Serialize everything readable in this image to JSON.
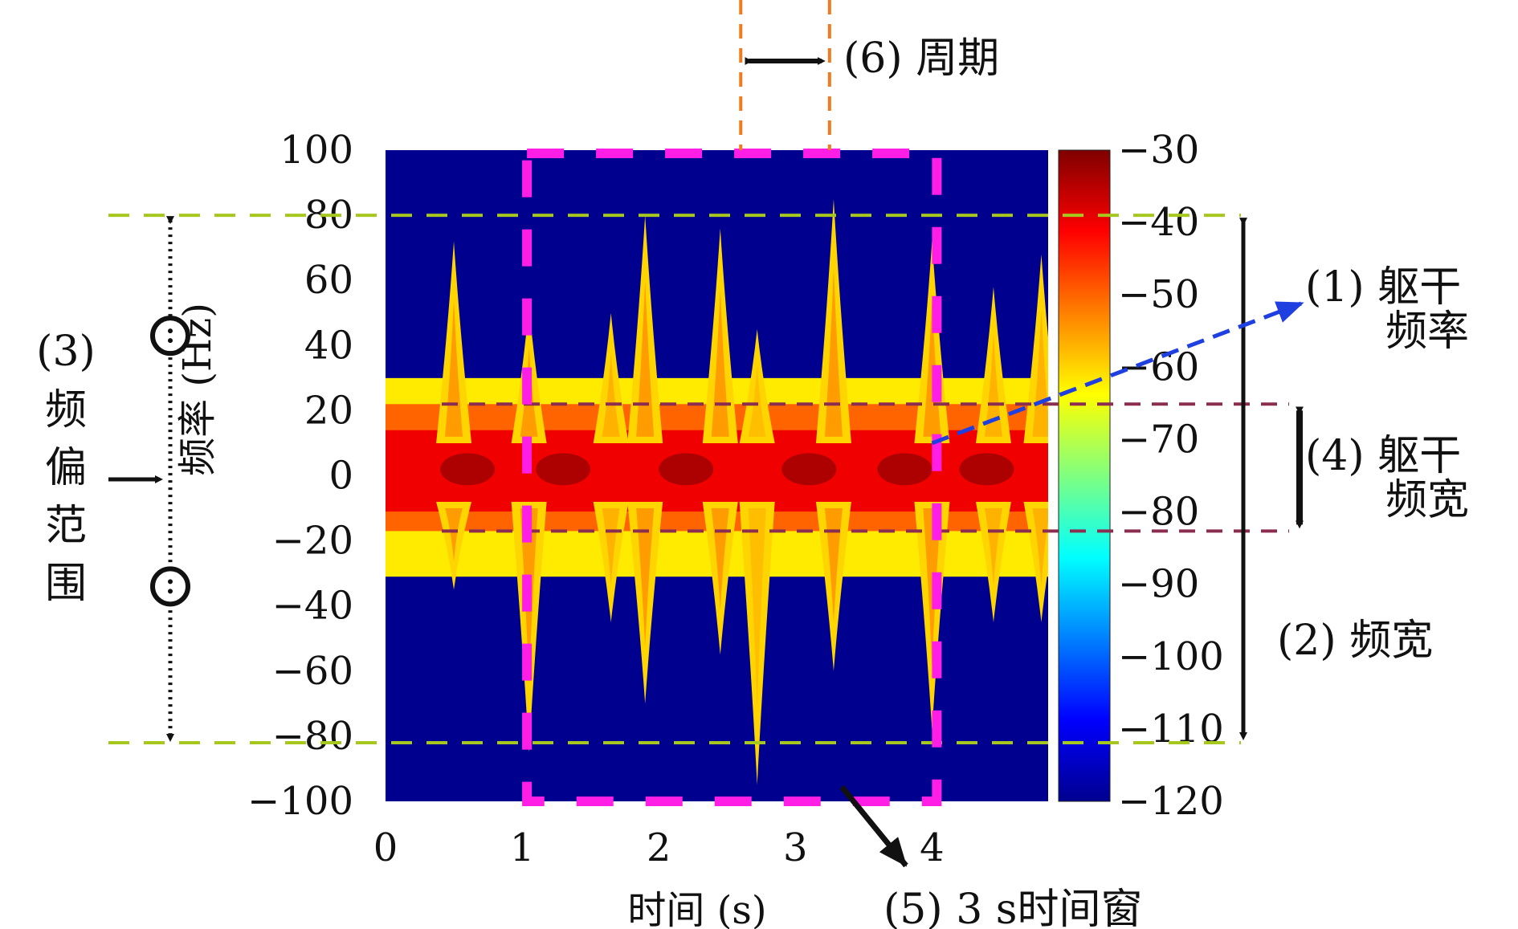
{
  "chart_data": {
    "type": "heatmap",
    "title": "",
    "xlabel": "时间 (s)",
    "ylabel": "频率 (Hz)",
    "xlim": [
      0,
      4.85
    ],
    "ylim": [
      -100,
      100
    ],
    "x_ticks": [
      "0",
      "1",
      "2",
      "3",
      "4"
    ],
    "y_ticks": [
      "100",
      "80",
      "60",
      "40",
      "20",
      "0",
      "−20",
      "−40",
      "−60",
      "−80",
      "−100"
    ],
    "colorbar": {
      "label": "",
      "range": [
        -120,
        -30
      ],
      "ticks": [
        "−30",
        "−40",
        "−50",
        "−60",
        "−70",
        "−80",
        "−90",
        "−100",
        "−110",
        "−120"
      ],
      "colormap": "jet",
      "colors": [
        "#00008f",
        "#0000ff",
        "#0080ff",
        "#00ffff",
        "#80ff80",
        "#ffff00",
        "#ff8000",
        "#ff0000",
        "#800000"
      ]
    },
    "torso_band_db": -40,
    "background_db": -120,
    "limb_bursts": [
      {
        "t": 0.5,
        "up_hz": 72,
        "down_hz": -35,
        "level_db": -55
      },
      {
        "t": 1.05,
        "up_hz": 52,
        "down_hz": -85,
        "level_db": -55
      },
      {
        "t": 1.65,
        "up_hz": 50,
        "down_hz": -45,
        "level_db": -57
      },
      {
        "t": 1.9,
        "up_hz": 80,
        "down_hz": -70,
        "level_db": -55
      },
      {
        "t": 2.45,
        "up_hz": 76,
        "down_hz": -55,
        "level_db": -55
      },
      {
        "t": 2.72,
        "up_hz": 45,
        "down_hz": -95,
        "level_db": -58
      },
      {
        "t": 3.28,
        "up_hz": 85,
        "down_hz": -60,
        "level_db": -55
      },
      {
        "t": 4.0,
        "up_hz": 72,
        "down_hz": -78,
        "level_db": -55
      },
      {
        "t": 4.45,
        "up_hz": 58,
        "down_hz": -45,
        "level_db": -57
      },
      {
        "t": 4.8,
        "up_hz": 68,
        "down_hz": -45,
        "level_db": -57
      }
    ],
    "reference_lines": {
      "total_bandwidth_hz": [
        80,
        -82
      ],
      "torso_bandwidth_hz": [
        22,
        -17
      ],
      "time_window_s": [
        1,
        4
      ],
      "period_s": [
        2.6,
        3.25
      ]
    }
  },
  "annotations": {
    "label_1_line1": "(1) 躯干",
    "label_1_line2": "频率",
    "label_2": "(2) 频宽",
    "label_3_line1": "(3)",
    "label_3_chars": [
      "频",
      "偏",
      "范",
      "围"
    ],
    "label_4_line1": "(4) 躯干",
    "label_4_line2": "频宽",
    "label_5": "(5) 3 s时间窗",
    "label_6": "(6) 周期"
  },
  "colors": {
    "bandwidth_lines": "#a6c81e",
    "torso_lines": "#8b2d4f",
    "time_window": "#ff1ee6",
    "period_lines": "#f07a1e",
    "torso_arrow": "#1f3fe0"
  }
}
